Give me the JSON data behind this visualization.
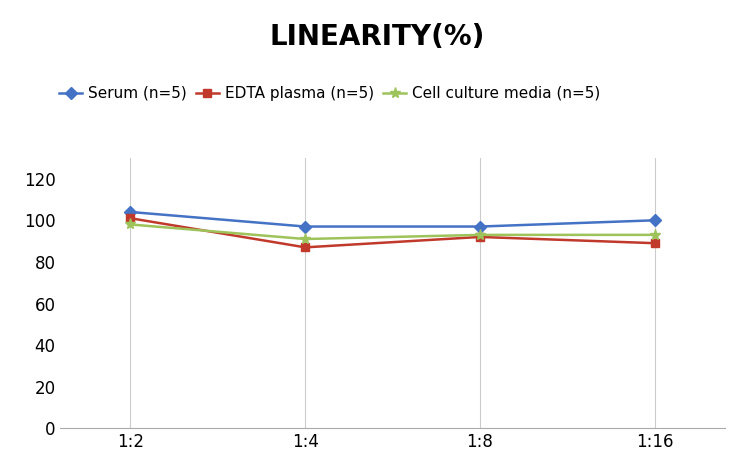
{
  "title": "LINEARITY(%)",
  "title_fontsize": 20,
  "title_fontweight": "bold",
  "x_labels": [
    "1:2",
    "1:4",
    "1:8",
    "1:16"
  ],
  "x_positions": [
    0,
    1,
    2,
    3
  ],
  "series": [
    {
      "label": "Serum (n=5)",
      "values": [
        104,
        97,
        97,
        100
      ],
      "color": "#4472C4",
      "marker": "D",
      "markersize": 6,
      "linewidth": 1.8
    },
    {
      "label": "EDTA plasma (n=5)",
      "values": [
        101,
        87,
        92,
        89
      ],
      "color": "#C0392B",
      "marker": "s",
      "markersize": 6,
      "linewidth": 1.8
    },
    {
      "label": "Cell culture media (n=5)",
      "values": [
        98,
        91,
        93,
        93
      ],
      "color": "#9DC35A",
      "marker": "*",
      "markersize": 8,
      "linewidth": 1.8
    }
  ],
  "ylim": [
    0,
    130
  ],
  "yticks": [
    0,
    20,
    40,
    60,
    80,
    100,
    120
  ],
  "grid_color": "#CCCCCC",
  "background_color": "#FFFFFF",
  "legend_fontsize": 11,
  "tick_fontsize": 12,
  "figsize": [
    7.55,
    4.51
  ],
  "dpi": 100
}
